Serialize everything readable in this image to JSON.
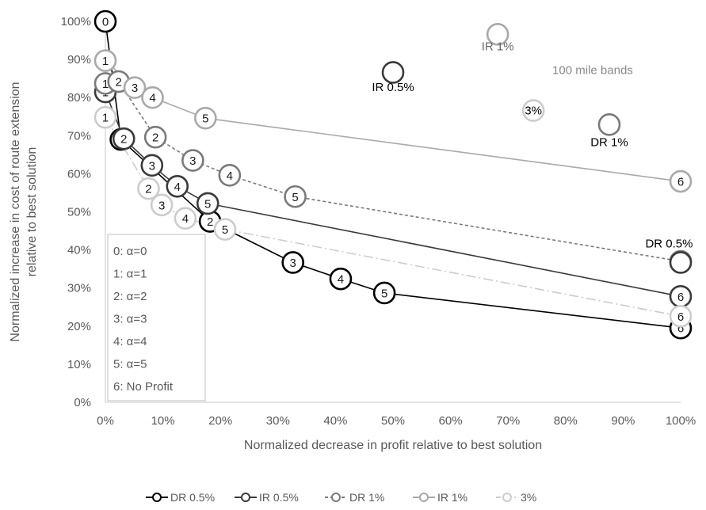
{
  "chart_data": {
    "type": "line",
    "title": "",
    "xlabel": "Normalized decrease in profit relative to best solution",
    "ylabel_lines": [
      "Normalized increase in cost of route extension",
      "relative to best solution"
    ],
    "xlim": [
      0,
      100
    ],
    "ylim": [
      0,
      100
    ],
    "x_ticks": [
      "0%",
      "10%",
      "20%",
      "30%",
      "40%",
      "50%",
      "60%",
      "70%",
      "80%",
      "90%",
      "100%"
    ],
    "y_ticks": [
      "0%",
      "10%",
      "20%",
      "30%",
      "40%",
      "50%",
      "60%",
      "70%",
      "80%",
      "90%",
      "100%"
    ],
    "grid": false,
    "legend_position": "bottom",
    "series": [
      {
        "name": "DR 0.5%",
        "color": "#000000",
        "dash": "solid",
        "points": [
          {
            "x": 0,
            "y": 100,
            "label": "0"
          },
          {
            "x": 2.7,
            "y": 69,
            "label": "2"
          },
          {
            "x": 18.2,
            "y": 47.5,
            "label": "2"
          },
          {
            "x": 32.6,
            "y": 36.7,
            "label": "3"
          },
          {
            "x": 40.9,
            "y": 32.4,
            "label": "4"
          },
          {
            "x": 48.5,
            "y": 28.7,
            "label": "5"
          },
          {
            "x": 100,
            "y": 19.5,
            "label": "6"
          }
        ]
      },
      {
        "name": "IR 0.5%",
        "color": "#3a3a3a",
        "dash": "solid",
        "points": [
          {
            "x": 0,
            "y": 81.5,
            "label": "1"
          },
          {
            "x": 3.2,
            "y": 69.2,
            "label": "2"
          },
          {
            "x": 8.1,
            "y": 62.2,
            "label": "3"
          },
          {
            "x": 12.5,
            "y": 56.7,
            "label": "4"
          },
          {
            "x": 17.8,
            "y": 52.2,
            "label": "5"
          },
          {
            "x": 100,
            "y": 27.8,
            "label": "6"
          }
        ]
      },
      {
        "name": "DR 1%",
        "color": "#7a7a7a",
        "dash": "dashed",
        "points": [
          {
            "x": 0,
            "y": 83.7,
            "label": "1"
          },
          {
            "x": 2.3,
            "y": 84.2,
            "label": "2"
          },
          {
            "x": 8.7,
            "y": 69.6,
            "label": "2"
          },
          {
            "x": 15.2,
            "y": 63.5,
            "label": "3"
          },
          {
            "x": 21.6,
            "y": 59.6,
            "label": "4"
          },
          {
            "x": 33.0,
            "y": 54.0,
            "label": "5"
          },
          {
            "x": 100,
            "y": 37.0,
            "label": "6"
          }
        ]
      },
      {
        "name": "IR 1%",
        "color": "#a9a9a9",
        "dash": "solid",
        "points": [
          {
            "x": 0,
            "y": 89.7,
            "label": "1"
          },
          {
            "x": 5.1,
            "y": 82.6,
            "label": "3"
          },
          {
            "x": 8.2,
            "y": 80.0,
            "label": "4"
          },
          {
            "x": 17.4,
            "y": 74.6,
            "label": "5"
          },
          {
            "x": 100,
            "y": 58.0,
            "label": "6"
          }
        ]
      },
      {
        "name": "3%",
        "color": "#cccccc",
        "dash": "dashdot",
        "points": [
          {
            "x": 0,
            "y": 74.8,
            "label": "1"
          },
          {
            "x": 7.5,
            "y": 56.1,
            "label": "2"
          },
          {
            "x": 9.8,
            "y": 51.8,
            "label": "3"
          },
          {
            "x": 13.9,
            "y": 48.3,
            "label": "4"
          },
          {
            "x": 20.8,
            "y": 45.4,
            "label": "5"
          },
          {
            "x": 100,
            "y": 22.6,
            "label": "6"
          }
        ]
      }
    ],
    "annotations": [
      {
        "text": "IR 1%",
        "x": 68.2,
        "y": 93.5,
        "color": "#666666"
      },
      {
        "text": "IR 0.5%",
        "x": 50.0,
        "y": 82.7,
        "color": "#000000"
      },
      {
        "text": "100 mile bands",
        "x": 84.7,
        "y": 87.2,
        "color": "#888888"
      },
      {
        "text": "3%",
        "x": 74.4,
        "y": 76.6,
        "color": "#000000"
      },
      {
        "text": "DR 1%",
        "x": 87.6,
        "y": 68.3,
        "color": "#000000"
      },
      {
        "text": "DR 0.5%",
        "x": 98.0,
        "y": 41.7,
        "color": "#000000"
      }
    ],
    "marker_annotations": [
      {
        "x": 68.2,
        "y": 96.6,
        "color": "#a9a9a9"
      },
      {
        "x": 50.0,
        "y": 86.6,
        "color": "#3a3a3a"
      },
      {
        "x": 74.4,
        "y": 76.6,
        "color": "#cccccc"
      },
      {
        "x": 87.6,
        "y": 72.9,
        "color": "#7a7a7a"
      },
      {
        "x": 100,
        "y": 36.7,
        "color": "#3a3a3a"
      }
    ],
    "key_box": {
      "entries": [
        "0: α=0",
        "1: α=1",
        "2: α=2",
        "3: α=3",
        "4: α=4",
        "5: α=5",
        "6: No Profit"
      ]
    }
  }
}
